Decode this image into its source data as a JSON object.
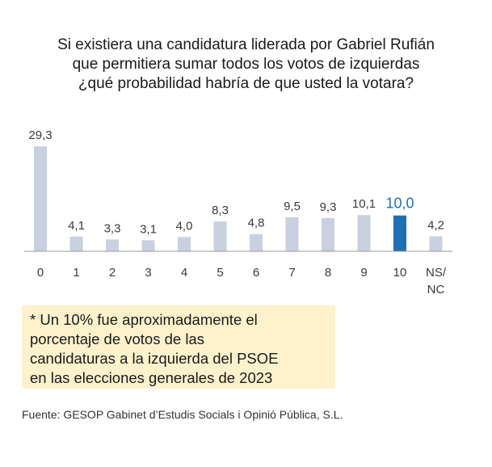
{
  "title_lines": [
    "Si existiera una candidatura liderada por Gabriel Rufián",
    "que permitiera sumar todos los votos de izquierdas",
    "¿qué probabilidad habría de que usted la votara?"
  ],
  "note_lines": [
    "* Un 10% fue aproximadamente el",
    "porcentaje de votos de las",
    "candidaturas a la izquierda del PSOE",
    "en las elecciones generales de 2023"
  ],
  "source": "Fuente: GESOP Gabinet d’Estudis Socials i Opinió Pública, S.L.",
  "colors": {
    "bar": "#c9d1e0",
    "highlight": "#1f6fb5",
    "label": "#3a3a3a",
    "note_background": "#fdf2cc"
  },
  "chart_data": {
    "type": "bar",
    "categories": [
      "0",
      "1",
      "2",
      "3",
      "4",
      "5",
      "6",
      "7",
      "8",
      "9",
      "10",
      "NS/\nNC"
    ],
    "category_lines": [
      [
        "0"
      ],
      [
        "1"
      ],
      [
        "2"
      ],
      [
        "3"
      ],
      [
        "4"
      ],
      [
        "5"
      ],
      [
        "6"
      ],
      [
        "7"
      ],
      [
        "8"
      ],
      [
        "9"
      ],
      [
        "10"
      ],
      [
        "NS/",
        "NC"
      ]
    ],
    "values": [
      29.3,
      4.1,
      3.3,
      3.1,
      4.0,
      8.3,
      4.8,
      9.5,
      9.3,
      10.1,
      10.0,
      4.2
    ],
    "value_labels": [
      "29,3",
      "4,1",
      "3,3",
      "3,1",
      "4,0",
      "8,3",
      "4,8",
      "9,5",
      "9,3",
      "10,1",
      "10,0",
      "4,2"
    ],
    "highlight_index": 10,
    "ylim": [
      0,
      30
    ],
    "grid": false,
    "legend": "none"
  }
}
